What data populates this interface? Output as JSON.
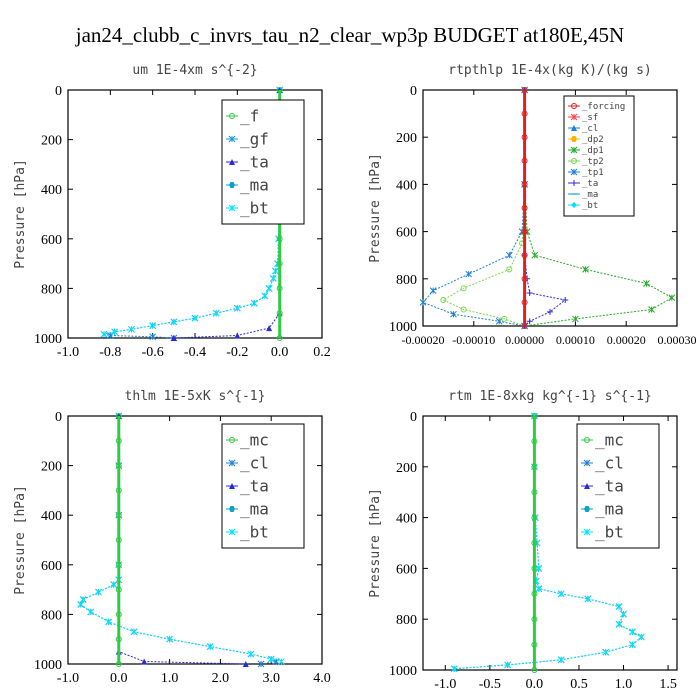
{
  "figure_title": "jan24_clubb_c_invrs_tau_n2_clear_wp3p  BUDGET at180E,45N",
  "colors": {
    "f": "#2ecc40",
    "gf": "#1f9bcf",
    "ta": "#2a2ad6",
    "ma": "#0aa0c8",
    "bt": "#00e0ff",
    "mc": "#2ecc40",
    "cl": "#1f7fd6",
    "forcing": "#e02020",
    "sf": "#ff4040",
    "dp2": "#ffb000",
    "dp1": "#22aa22",
    "tp2": "#7ad84a",
    "tp1": "#1f7fd6"
  },
  "chart_data": [
    {
      "type": "line",
      "title": "um  1E-4xm s^{-2}",
      "ylabel": "Pressure [hPa]",
      "xlim": [
        -1.0,
        0.2
      ],
      "ylim": [
        1000,
        0
      ],
      "xticks": [
        "-1.0",
        "-0.8",
        "-0.6",
        "-0.4",
        "-0.2",
        "0.0",
        "0.2"
      ],
      "yticks": [
        "0",
        "200",
        "400",
        "600",
        "800",
        "1000"
      ],
      "legend": [
        "_f",
        "_gf",
        "_ta",
        "_ma",
        "_bt"
      ],
      "series": [
        {
          "name": "_gf",
          "color": "#1f7fd6",
          "points": [
            [
              0,
              0
            ],
            [
              0,
              200
            ],
            [
              -0.003,
              400
            ],
            [
              -0.005,
              600
            ],
            [
              -0.01,
              700
            ],
            [
              -0.02,
              730
            ],
            [
              -0.03,
              760
            ],
            [
              -0.05,
              800
            ],
            [
              -0.07,
              830
            ],
            [
              -0.12,
              860
            ],
            [
              -0.2,
              880
            ],
            [
              -0.3,
              900
            ],
            [
              -0.4,
              920
            ],
            [
              -0.5,
              935
            ],
            [
              -0.6,
              950
            ],
            [
              -0.7,
              965
            ],
            [
              -0.78,
              975
            ],
            [
              -0.83,
              985
            ],
            [
              -0.8,
              990
            ],
            [
              -0.6,
              995
            ],
            [
              -0.5,
              1000
            ]
          ]
        },
        {
          "name": "_bt",
          "color": "#00e0ff",
          "points": [
            [
              0,
              0
            ],
            [
              0,
              200
            ],
            [
              -0.003,
              400
            ],
            [
              -0.005,
              600
            ],
            [
              -0.01,
              700
            ],
            [
              -0.02,
              730
            ],
            [
              -0.03,
              760
            ],
            [
              -0.05,
              800
            ],
            [
              -0.07,
              830
            ],
            [
              -0.12,
              860
            ],
            [
              -0.2,
              880
            ],
            [
              -0.3,
              900
            ],
            [
              -0.4,
              920
            ],
            [
              -0.5,
              935
            ],
            [
              -0.6,
              950
            ],
            [
              -0.7,
              965
            ],
            [
              -0.78,
              975
            ],
            [
              -0.83,
              985
            ]
          ]
        },
        {
          "name": "_ta",
          "color": "#2a2ad6",
          "points": [
            [
              0,
              0
            ],
            [
              0,
              900
            ],
            [
              -0.05,
              960
            ],
            [
              -0.2,
              990
            ],
            [
              -0.5,
              1000
            ]
          ]
        },
        {
          "name": "_f",
          "color": "#2ecc40",
          "points": [
            [
              0,
              0
            ],
            [
              0,
              100
            ],
            [
              0,
              200
            ],
            [
              0,
              300
            ],
            [
              0,
              400
            ],
            [
              0,
              500
            ],
            [
              0,
              600
            ],
            [
              0,
              700
            ],
            [
              0,
              800
            ],
            [
              0,
              900
            ],
            [
              0,
              1000
            ]
          ]
        }
      ]
    },
    {
      "type": "line",
      "title": "rtpthlp  1E-4x(kg K)/(kg s)",
      "ylabel": "Pressure [hPa]",
      "xlim": [
        -0.0002,
        0.0003
      ],
      "ylim": [
        1000,
        0
      ],
      "xticks": [
        "-0.00020",
        "-0.00010",
        "0.00000",
        "0.00010",
        "0.00020",
        "0.00030"
      ],
      "yticks": [
        "0",
        "200",
        "400",
        "600",
        "800",
        "1000"
      ],
      "legend": [
        "_forcing",
        "_sf",
        "_cl",
        "_dp2",
        "_dp1",
        "_tp2",
        "_tp1",
        "_ta",
        "_ma",
        "_bt"
      ],
      "series": [
        {
          "name": "_dp1",
          "color": "#22aa22",
          "points": [
            [
              0,
              0
            ],
            [
              0,
              400
            ],
            [
              5e-06,
              600
            ],
            [
              2e-05,
              700
            ],
            [
              0.00012,
              760
            ],
            [
              0.00024,
              820
            ],
            [
              0.00029,
              880
            ],
            [
              0.00025,
              930
            ],
            [
              0.0001,
              970
            ],
            [
              0,
              1000
            ]
          ]
        },
        {
          "name": "_tp1",
          "color": "#1f7fd6",
          "points": [
            [
              0,
              0
            ],
            [
              0,
              400
            ],
            [
              -5e-06,
              600
            ],
            [
              -3e-05,
              700
            ],
            [
              -0.00011,
              780
            ],
            [
              -0.00018,
              850
            ],
            [
              -0.0002,
              900
            ],
            [
              -0.00014,
              950
            ],
            [
              -5e-05,
              980
            ],
            [
              0,
              1000
            ]
          ]
        },
        {
          "name": "_tp2",
          "color": "#7ad84a",
          "points": [
            [
              0,
              0
            ],
            [
              0,
              500
            ],
            [
              -5e-06,
              650
            ],
            [
              -3e-05,
              760
            ],
            [
              -0.00012,
              840
            ],
            [
              -0.00016,
              890
            ],
            [
              -0.00012,
              930
            ],
            [
              -4e-05,
              970
            ],
            [
              0,
              1000
            ]
          ]
        },
        {
          "name": "_ta",
          "color": "#2a2ad6",
          "points": [
            [
              0,
              0
            ],
            [
              0,
              700
            ],
            [
              5e-06,
              800
            ],
            [
              1e-05,
              860
            ],
            [
              8e-05,
              890
            ],
            [
              5e-05,
              940
            ],
            [
              1e-05,
              980
            ],
            [
              0,
              1000
            ]
          ]
        },
        {
          "name": "_forcing",
          "color": "#e02020",
          "points": [
            [
              0,
              0
            ],
            [
              0,
              100
            ],
            [
              0,
              200
            ],
            [
              0,
              300
            ],
            [
              0,
              400
            ],
            [
              0,
              500
            ],
            [
              0,
              600
            ],
            [
              0,
              700
            ],
            [
              0,
              800
            ],
            [
              0,
              900
            ],
            [
              0,
              1000
            ]
          ]
        }
      ]
    },
    {
      "type": "line",
      "title": "thlm  1E-5xK s^{-1}",
      "ylabel": "Pressure [hPa]",
      "xlim": [
        -1.0,
        4.0
      ],
      "ylim": [
        1000,
        0
      ],
      "xticks": [
        "-1.0",
        "0.0",
        "1.0",
        "2.0",
        "3.0",
        "4.0"
      ],
      "yticks": [
        "0",
        "200",
        "400",
        "600",
        "800",
        "1000"
      ],
      "legend": [
        "_mc",
        "_cl",
        "_ta",
        "_ma",
        "_bt"
      ],
      "series": [
        {
          "name": "_cl",
          "color": "#1f7fd6",
          "points": [
            [
              0,
              0
            ],
            [
              0,
              200
            ],
            [
              0,
              400
            ],
            [
              0,
              600
            ],
            [
              0,
              660
            ],
            [
              -0.1,
              680
            ],
            [
              -0.4,
              710
            ],
            [
              -0.7,
              740
            ],
            [
              -0.75,
              760
            ],
            [
              -0.55,
              790
            ],
            [
              -0.2,
              830
            ],
            [
              0.3,
              870
            ],
            [
              1.0,
              900
            ],
            [
              1.8,
              930
            ],
            [
              2.6,
              960
            ],
            [
              3.0,
              980
            ],
            [
              3.1,
              990
            ],
            [
              2.8,
              1000
            ]
          ]
        },
        {
          "name": "_bt",
          "color": "#00e0ff",
          "points": [
            [
              0,
              0
            ],
            [
              0,
              600
            ],
            [
              0,
              660
            ],
            [
              -0.1,
              680
            ],
            [
              -0.4,
              710
            ],
            [
              -0.7,
              740
            ],
            [
              -0.75,
              760
            ],
            [
              -0.55,
              790
            ],
            [
              -0.2,
              830
            ],
            [
              0.3,
              870
            ],
            [
              1.0,
              900
            ],
            [
              1.8,
              930
            ],
            [
              2.6,
              960
            ],
            [
              3.0,
              980
            ],
            [
              3.2,
              990
            ]
          ]
        },
        {
          "name": "_ta",
          "color": "#2a2ad6",
          "points": [
            [
              0,
              0
            ],
            [
              0,
              950
            ],
            [
              0.5,
              990
            ],
            [
              2.5,
              1000
            ]
          ]
        },
        {
          "name": "_mc",
          "color": "#2ecc40",
          "points": [
            [
              0,
              0
            ],
            [
              0,
              100
            ],
            [
              0,
              200
            ],
            [
              0,
              300
            ],
            [
              0,
              400
            ],
            [
              0,
              500
            ],
            [
              0,
              600
            ],
            [
              0,
              700
            ],
            [
              0,
              800
            ],
            [
              0,
              900
            ],
            [
              0,
              1000
            ]
          ]
        }
      ]
    },
    {
      "type": "line",
      "title": "rtm  1E-8xkg kg^{-1} s^{-1}",
      "ylabel": "Pressure [hPa]",
      "xlim": [
        -1.25,
        1.6
      ],
      "ylim": [
        1000,
        0
      ],
      "xticks": [
        "-1.0",
        "-0.5",
        "0.0",
        "0.5",
        "1.0",
        "1.5"
      ],
      "yticks": [
        "0",
        "200",
        "400",
        "600",
        "800",
        "1000"
      ],
      "legend": [
        "_mc",
        "_cl",
        "_ta",
        "_ma",
        "_bt"
      ],
      "series": [
        {
          "name": "_cl",
          "color": "#1f7fd6",
          "points": [
            [
              0,
              0
            ],
            [
              0,
              200
            ],
            [
              0.01,
              400
            ],
            [
              0.03,
              500
            ],
            [
              0.05,
              600
            ],
            [
              0.02,
              650
            ],
            [
              0.05,
              680
            ],
            [
              0.3,
              700
            ],
            [
              0.6,
              720
            ],
            [
              0.95,
              750
            ],
            [
              1.0,
              780
            ],
            [
              0.95,
              820
            ],
            [
              1.1,
              850
            ],
            [
              1.2,
              870
            ],
            [
              1.1,
              900
            ],
            [
              0.8,
              930
            ],
            [
              0.3,
              960
            ],
            [
              -0.3,
              980
            ],
            [
              -0.9,
              995
            ]
          ]
        },
        {
          "name": "_bt",
          "color": "#00e0ff",
          "points": [
            [
              0,
              0
            ],
            [
              0,
              200
            ],
            [
              0.01,
              400
            ],
            [
              0.03,
              500
            ],
            [
              0.05,
              600
            ],
            [
              0.02,
              650
            ],
            [
              0.05,
              680
            ],
            [
              0.3,
              700
            ],
            [
              0.6,
              720
            ],
            [
              0.95,
              750
            ],
            [
              1.0,
              780
            ],
            [
              0.95,
              820
            ],
            [
              1.1,
              850
            ],
            [
              1.2,
              870
            ],
            [
              1.1,
              900
            ],
            [
              0.8,
              930
            ],
            [
              0.3,
              960
            ],
            [
              -0.3,
              980
            ],
            [
              -0.9,
              995
            ]
          ]
        },
        {
          "name": "_mc",
          "color": "#2ecc40",
          "points": [
            [
              0,
              0
            ],
            [
              0,
              100
            ],
            [
              0,
              200
            ],
            [
              0,
              300
            ],
            [
              0,
              400
            ],
            [
              0,
              500
            ],
            [
              0,
              600
            ],
            [
              0,
              700
            ],
            [
              0,
              800
            ],
            [
              0,
              900
            ],
            [
              0,
              1000
            ]
          ]
        }
      ]
    }
  ]
}
